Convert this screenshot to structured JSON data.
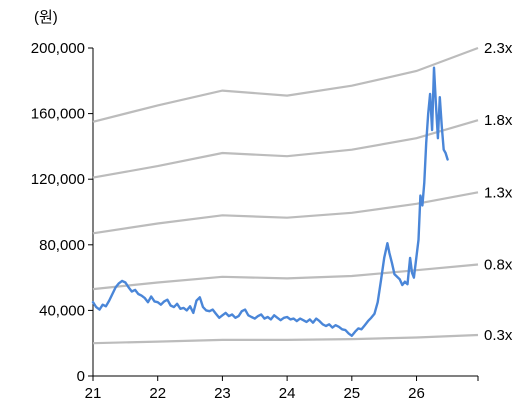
{
  "chart_data": {
    "type": "line",
    "title": "",
    "unit_label": "(원)",
    "xlabel": "",
    "ylabel": "",
    "xlim": [
      21,
      26.95
    ],
    "ylim": [
      0,
      200000
    ],
    "grid": false,
    "x_ticks": [
      21,
      22,
      23,
      24,
      25,
      26
    ],
    "x_tick_labels": [
      "21",
      "22",
      "23",
      "24",
      "25",
      "26"
    ],
    "y_ticks": [
      0,
      40000,
      80000,
      120000,
      160000,
      200000
    ],
    "y_tick_labels": [
      "0",
      "40,000",
      "80,000",
      "120,000",
      "160,000",
      "200,000"
    ],
    "series": [
      {
        "role": "price",
        "color": "#4a86d8",
        "points": [
          [
            21.0,
            45000
          ],
          [
            21.05,
            42000
          ],
          [
            21.1,
            40500
          ],
          [
            21.15,
            43500
          ],
          [
            21.2,
            42500
          ],
          [
            21.25,
            46000
          ],
          [
            21.3,
            50000
          ],
          [
            21.35,
            54000
          ],
          [
            21.4,
            56500
          ],
          [
            21.45,
            58000
          ],
          [
            21.5,
            57000
          ],
          [
            21.55,
            54000
          ],
          [
            21.6,
            51500
          ],
          [
            21.65,
            52500
          ],
          [
            21.7,
            50000
          ],
          [
            21.75,
            49000
          ],
          [
            21.8,
            47500
          ],
          [
            21.85,
            45000
          ],
          [
            21.9,
            48500
          ],
          [
            21.95,
            45500
          ],
          [
            22.0,
            45000
          ],
          [
            22.05,
            43500
          ],
          [
            22.1,
            45500
          ],
          [
            22.15,
            46500
          ],
          [
            22.2,
            43000
          ],
          [
            22.25,
            42000
          ],
          [
            22.3,
            44000
          ],
          [
            22.35,
            41000
          ],
          [
            22.4,
            41500
          ],
          [
            22.45,
            40000
          ],
          [
            22.5,
            42500
          ],
          [
            22.55,
            38500
          ],
          [
            22.6,
            46000
          ],
          [
            22.65,
            48000
          ],
          [
            22.7,
            42000
          ],
          [
            22.75,
            40000
          ],
          [
            22.8,
            39500
          ],
          [
            22.85,
            40500
          ],
          [
            22.9,
            38000
          ],
          [
            22.95,
            35500
          ],
          [
            23.0,
            37000
          ],
          [
            23.05,
            38500
          ],
          [
            23.1,
            36500
          ],
          [
            23.15,
            37500
          ],
          [
            23.2,
            35500
          ],
          [
            23.25,
            36500
          ],
          [
            23.3,
            39500
          ],
          [
            23.35,
            40500
          ],
          [
            23.4,
            37000
          ],
          [
            23.45,
            36000
          ],
          [
            23.5,
            35000
          ],
          [
            23.55,
            36500
          ],
          [
            23.6,
            37500
          ],
          [
            23.65,
            35000
          ],
          [
            23.7,
            36000
          ],
          [
            23.75,
            34500
          ],
          [
            23.8,
            37000
          ],
          [
            23.85,
            35500
          ],
          [
            23.9,
            34000
          ],
          [
            23.95,
            35500
          ],
          [
            24.0,
            36000
          ],
          [
            24.05,
            34500
          ],
          [
            24.1,
            35000
          ],
          [
            24.15,
            33500
          ],
          [
            24.2,
            35000
          ],
          [
            24.25,
            34000
          ],
          [
            24.3,
            33000
          ],
          [
            24.35,
            34500
          ],
          [
            24.4,
            32500
          ],
          [
            24.45,
            35000
          ],
          [
            24.5,
            33500
          ],
          [
            24.55,
            31500
          ],
          [
            24.6,
            30500
          ],
          [
            24.65,
            31500
          ],
          [
            24.7,
            29500
          ],
          [
            24.75,
            31000
          ],
          [
            24.8,
            30000
          ],
          [
            24.85,
            28500
          ],
          [
            24.9,
            28000
          ],
          [
            24.95,
            26000
          ],
          [
            25.0,
            24500
          ],
          [
            25.05,
            27000
          ],
          [
            25.1,
            29000
          ],
          [
            25.15,
            28500
          ],
          [
            25.2,
            31000
          ],
          [
            25.25,
            33500
          ],
          [
            25.3,
            35500
          ],
          [
            25.35,
            38000
          ],
          [
            25.4,
            45000
          ],
          [
            25.45,
            58000
          ],
          [
            25.5,
            72000
          ],
          [
            25.55,
            81000
          ],
          [
            25.58,
            75000
          ],
          [
            25.62,
            69000
          ],
          [
            25.66,
            62000
          ],
          [
            25.7,
            60500
          ],
          [
            25.74,
            59000
          ],
          [
            25.78,
            55500
          ],
          [
            25.82,
            57500
          ],
          [
            25.86,
            56000
          ],
          [
            25.9,
            72000
          ],
          [
            25.93,
            63000
          ],
          [
            25.96,
            60000
          ],
          [
            26.0,
            73000
          ],
          [
            26.03,
            83000
          ],
          [
            26.06,
            110000
          ],
          [
            26.09,
            104000
          ],
          [
            26.12,
            118000
          ],
          [
            26.15,
            142000
          ],
          [
            26.18,
            160000
          ],
          [
            26.21,
            172000
          ],
          [
            26.24,
            150000
          ],
          [
            26.27,
            188000
          ],
          [
            26.3,
            166000
          ],
          [
            26.33,
            145000
          ],
          [
            26.36,
            170000
          ],
          [
            26.39,
            152000
          ],
          [
            26.42,
            138000
          ],
          [
            26.45,
            136000
          ],
          [
            26.48,
            132000
          ]
        ]
      },
      {
        "role": "band",
        "label": "2.3x",
        "color": "#bcbcbc",
        "points": [
          [
            21.0,
            155000
          ],
          [
            22.0,
            165000
          ],
          [
            23.0,
            174000
          ],
          [
            24.0,
            171000
          ],
          [
            25.0,
            177000
          ],
          [
            26.0,
            186000
          ],
          [
            26.95,
            200000
          ]
        ]
      },
      {
        "role": "band",
        "label": "1.8x",
        "color": "#bcbcbc",
        "points": [
          [
            21.0,
            121000
          ],
          [
            22.0,
            128000
          ],
          [
            23.0,
            136000
          ],
          [
            24.0,
            134000
          ],
          [
            25.0,
            138000
          ],
          [
            26.0,
            145000
          ],
          [
            26.95,
            156000
          ]
        ]
      },
      {
        "role": "band",
        "label": "1.3x",
        "color": "#bcbcbc",
        "points": [
          [
            21.0,
            87000
          ],
          [
            22.0,
            93000
          ],
          [
            23.0,
            98000
          ],
          [
            24.0,
            96500
          ],
          [
            25.0,
            99500
          ],
          [
            26.0,
            105000
          ],
          [
            26.95,
            112000
          ]
        ]
      },
      {
        "role": "band",
        "label": "0.8x",
        "color": "#bcbcbc",
        "points": [
          [
            21.0,
            53000
          ],
          [
            22.0,
            57000
          ],
          [
            23.0,
            60500
          ],
          [
            24.0,
            59500
          ],
          [
            25.0,
            61000
          ],
          [
            26.0,
            64500
          ],
          [
            26.95,
            68000
          ]
        ]
      },
      {
        "role": "band",
        "label": "0.3x",
        "color": "#bcbcbc",
        "points": [
          [
            21.0,
            20000
          ],
          [
            22.0,
            21000
          ],
          [
            23.0,
            22000
          ],
          [
            24.0,
            22000
          ],
          [
            25.0,
            22500
          ],
          [
            26.0,
            23500
          ],
          [
            26.95,
            25000
          ]
        ]
      }
    ]
  }
}
